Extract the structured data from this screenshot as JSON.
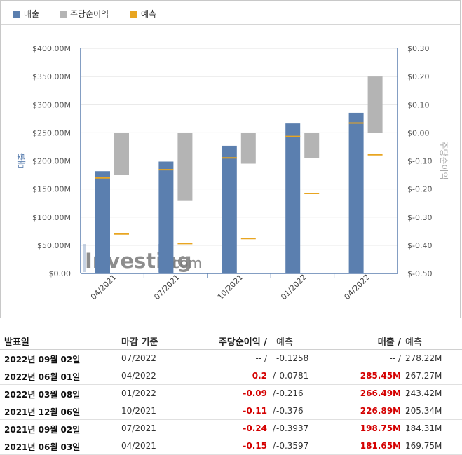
{
  "legend": [
    {
      "label": "매출",
      "color": "#5b7faf"
    },
    {
      "label": "주당순이익",
      "color": "#b4b4b4"
    },
    {
      "label": "예측",
      "color": "#e8a521"
    }
  ],
  "chart_data": {
    "type": "bar",
    "categories": [
      "04/2021",
      "07/2021",
      "10/2021",
      "01/2022",
      "04/2022"
    ],
    "ylabel": "매출",
    "y2label": "주당순이익",
    "ylim": [
      0,
      400
    ],
    "y2lim": [
      -0.5,
      0.3
    ],
    "y_ticks": [
      "$0.00",
      "$50.00M",
      "$100.00M",
      "$150.00M",
      "$200.00M",
      "$250.00M",
      "$300.00M",
      "$350.00M",
      "$400.00M"
    ],
    "y2_ticks": [
      "$-0.50",
      "$-0.40",
      "$-0.30",
      "$-0.20",
      "$-0.10",
      "$0.00",
      "$0.10",
      "$0.20",
      "$0.30"
    ],
    "series": [
      {
        "name": "매출",
        "axis": "left",
        "values": [
          181.65,
          198.75,
          226.89,
          266.49,
          285.45
        ]
      },
      {
        "name": "매출 예측",
        "axis": "left",
        "values": [
          169.75,
          184.31,
          205.34,
          243.42,
          267.27
        ]
      },
      {
        "name": "주당순이익",
        "axis": "right",
        "values": [
          -0.15,
          -0.24,
          -0.11,
          -0.09,
          0.2
        ]
      },
      {
        "name": "주당순이익 예측",
        "axis": "right",
        "values": [
          -0.3597,
          -0.3937,
          -0.376,
          -0.216,
          -0.0781
        ]
      }
    ],
    "grid": true,
    "legend_position": "top-left"
  },
  "watermark": {
    "brand": "Investing",
    "suffix": ".com"
  },
  "table": {
    "headers": {
      "date": "발표일",
      "end": "마감 기준",
      "eps": "주당순이익 /",
      "eps_f": "예측",
      "rev": "매출 /",
      "rev_f": "예측"
    },
    "rows": [
      {
        "date": "2022년 09월 02일",
        "end": "07/2022",
        "eps": "-- /",
        "eps_f": "-0.1258",
        "rev": "-- /",
        "rev_f": "278.22M",
        "eps_red": false,
        "rev_red": false
      },
      {
        "date": "2022년 06월 01일",
        "end": "04/2022",
        "eps": "0.2",
        "eps_f": "-0.0781",
        "rev": "285.45M",
        "rev_f": "267.27M",
        "eps_red": true,
        "rev_red": true
      },
      {
        "date": "2022년 03월 08일",
        "end": "01/2022",
        "eps": "-0.09",
        "eps_f": "-0.216",
        "rev": "266.49M",
        "rev_f": "243.42M",
        "eps_red": true,
        "rev_red": true
      },
      {
        "date": "2021년 12월 06일",
        "end": "10/2021",
        "eps": "-0.11",
        "eps_f": "-0.376",
        "rev": "226.89M",
        "rev_f": "205.34M",
        "eps_red": true,
        "rev_red": true
      },
      {
        "date": "2021년 09월 02일",
        "end": "07/2021",
        "eps": "-0.24",
        "eps_f": "-0.3937",
        "rev": "198.75M",
        "rev_f": "184.31M",
        "eps_red": true,
        "rev_red": true
      },
      {
        "date": "2021년 06월 03일",
        "end": "04/2021",
        "eps": "-0.15",
        "eps_f": "-0.3597",
        "rev": "181.65M",
        "rev_f": "169.75M",
        "eps_red": true,
        "rev_red": true
      }
    ]
  }
}
